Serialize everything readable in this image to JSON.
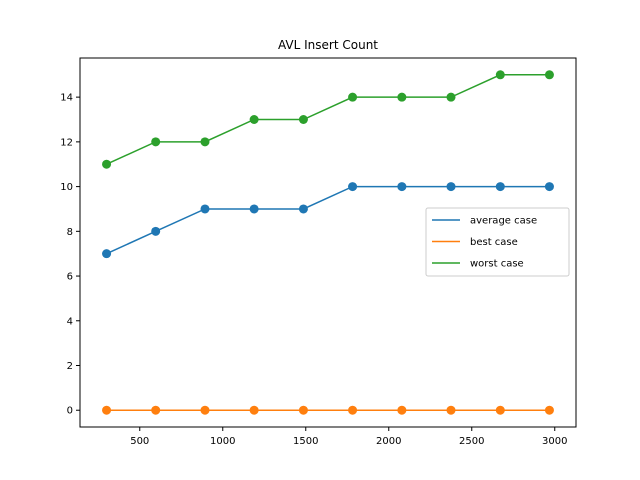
{
  "chart_data": {
    "type": "line",
    "title": "AVL Insert Count",
    "xlabel": "",
    "ylabel": "",
    "x": [
      300,
      596,
      893,
      1189,
      1486,
      1782,
      2079,
      2375,
      2672,
      2968
    ],
    "xlim": [
      140,
      3128
    ],
    "ylim": [
      -0.75,
      15.75
    ],
    "xticks": [
      500,
      1000,
      1500,
      2000,
      2500,
      3000
    ],
    "yticks": [
      0,
      2,
      4,
      6,
      8,
      10,
      12,
      14
    ],
    "grid": false,
    "legend_position": "center-right",
    "series": [
      {
        "name": "average case",
        "color": "#1f77b4",
        "values": [
          7,
          8,
          9,
          9,
          9,
          10,
          10,
          10,
          10,
          10
        ]
      },
      {
        "name": "best case",
        "color": "#ff7f0e",
        "values": [
          0,
          0,
          0,
          0,
          0,
          0,
          0,
          0,
          0,
          0
        ]
      },
      {
        "name": "worst case",
        "color": "#2ca02c",
        "values": [
          11,
          12,
          12,
          13,
          13,
          14,
          14,
          14,
          15,
          15
        ]
      }
    ]
  }
}
